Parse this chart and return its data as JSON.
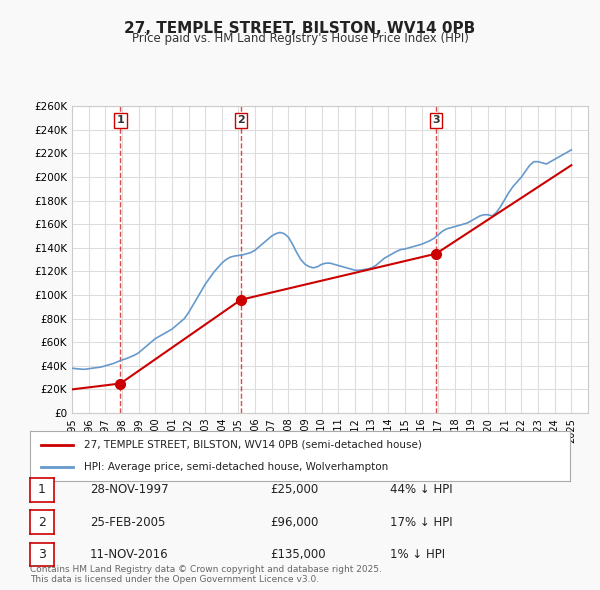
{
  "title": "27, TEMPLE STREET, BILSTON, WV14 0PB",
  "subtitle": "Price paid vs. HM Land Registry's House Price Index (HPI)",
  "ylabel": "",
  "xlabel": "",
  "ylim": [
    0,
    260000
  ],
  "yticks": [
    0,
    20000,
    40000,
    60000,
    80000,
    100000,
    120000,
    140000,
    160000,
    180000,
    200000,
    220000,
    240000,
    260000
  ],
  "ytick_labels": [
    "£0",
    "£20K",
    "£40K",
    "£60K",
    "£80K",
    "£100K",
    "£120K",
    "£140K",
    "£160K",
    "£180K",
    "£200K",
    "£220K",
    "£240K",
    "£260K"
  ],
  "xlim_start": 1995.0,
  "xlim_end": 2026.0,
  "background_color": "#f9f9f9",
  "plot_bg_color": "#ffffff",
  "grid_color": "#dddddd",
  "red_line_color": "#cc0000",
  "blue_line_color": "#6699cc",
  "dashed_line_color": "#cc0000",
  "transactions": [
    {
      "date": "28-NOV-1997",
      "year": 1997.91,
      "price": 25000,
      "label": "1",
      "pct": "44%",
      "dir": "↓"
    },
    {
      "date": "25-FEB-2005",
      "year": 2005.15,
      "price": 96000,
      "label": "2",
      "pct": "17%",
      "dir": "↓"
    },
    {
      "date": "11-NOV-2016",
      "year": 2016.87,
      "price": 135000,
      "label": "3",
      "pct": "1%",
      "dir": "↓"
    }
  ],
  "legend_line1": "27, TEMPLE STREET, BILSTON, WV14 0PB (semi-detached house)",
  "legend_line2": "HPI: Average price, semi-detached house, Wolverhampton",
  "footnote": "Contains HM Land Registry data © Crown copyright and database right 2025.\nThis data is licensed under the Open Government Licence v3.0.",
  "hpi_data_x": [
    1995.0,
    1995.25,
    1995.5,
    1995.75,
    1996.0,
    1996.25,
    1996.5,
    1996.75,
    1997.0,
    1997.25,
    1997.5,
    1997.75,
    1998.0,
    1998.25,
    1998.5,
    1998.75,
    1999.0,
    1999.25,
    1999.5,
    1999.75,
    2000.0,
    2000.25,
    2000.5,
    2000.75,
    2001.0,
    2001.25,
    2001.5,
    2001.75,
    2002.0,
    2002.25,
    2002.5,
    2002.75,
    2003.0,
    2003.25,
    2003.5,
    2003.75,
    2004.0,
    2004.25,
    2004.5,
    2004.75,
    2005.0,
    2005.25,
    2005.5,
    2005.75,
    2006.0,
    2006.25,
    2006.5,
    2006.75,
    2007.0,
    2007.25,
    2007.5,
    2007.75,
    2008.0,
    2008.25,
    2008.5,
    2008.75,
    2009.0,
    2009.25,
    2009.5,
    2009.75,
    2010.0,
    2010.25,
    2010.5,
    2010.75,
    2011.0,
    2011.25,
    2011.5,
    2011.75,
    2012.0,
    2012.25,
    2012.5,
    2012.75,
    2013.0,
    2013.25,
    2013.5,
    2013.75,
    2014.0,
    2014.25,
    2014.5,
    2014.75,
    2015.0,
    2015.25,
    2015.5,
    2015.75,
    2016.0,
    2016.25,
    2016.5,
    2016.75,
    2017.0,
    2017.25,
    2017.5,
    2017.75,
    2018.0,
    2018.25,
    2018.5,
    2018.75,
    2019.0,
    2019.25,
    2019.5,
    2019.75,
    2020.0,
    2020.25,
    2020.5,
    2020.75,
    2021.0,
    2021.25,
    2021.5,
    2021.75,
    2022.0,
    2022.25,
    2022.5,
    2022.75,
    2023.0,
    2023.25,
    2023.5,
    2023.75,
    2024.0,
    2024.25,
    2024.5,
    2024.75,
    2025.0
  ],
  "hpi_data_y": [
    38000,
    37500,
    37200,
    37000,
    37500,
    38000,
    38500,
    39000,
    40000,
    41000,
    42000,
    43500,
    45000,
    46000,
    47500,
    49000,
    51000,
    54000,
    57000,
    60000,
    63000,
    65000,
    67000,
    69000,
    71000,
    74000,
    77000,
    80000,
    85000,
    91000,
    97000,
    103000,
    109000,
    114000,
    119000,
    123000,
    127000,
    130000,
    132000,
    133000,
    133500,
    134000,
    135000,
    136000,
    138000,
    141000,
    144000,
    147000,
    150000,
    152000,
    153000,
    152000,
    149000,
    143000,
    136000,
    130000,
    126000,
    124000,
    123000,
    124000,
    126000,
    127000,
    127000,
    126000,
    125000,
    124000,
    123000,
    122000,
    121000,
    121000,
    121500,
    122000,
    123000,
    125000,
    128000,
    131000,
    133000,
    135000,
    137000,
    138500,
    139000,
    140000,
    141000,
    142000,
    143000,
    144500,
    146000,
    148000,
    151000,
    154000,
    156000,
    157000,
    158000,
    159000,
    160000,
    161000,
    163000,
    165000,
    167000,
    168000,
    168000,
    167000,
    170000,
    175000,
    181000,
    187000,
    192000,
    196000,
    200000,
    205000,
    210000,
    213000,
    213000,
    212000,
    211000,
    213000,
    215000,
    217000,
    219000,
    221000,
    223000
  ],
  "price_paid_x": [
    1995.0,
    1997.91,
    2005.15,
    2016.87,
    2025.0
  ],
  "price_paid_y": [
    20000,
    25000,
    96000,
    135000,
    210000
  ]
}
